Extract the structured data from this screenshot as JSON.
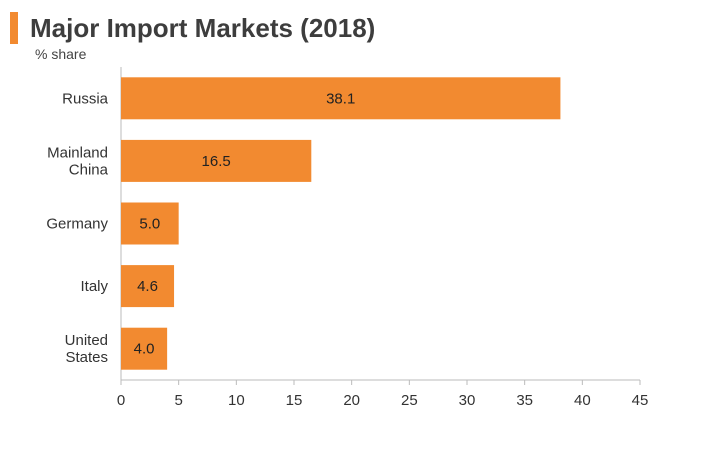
{
  "header": {
    "title": "Major Import Markets (2018)",
    "subtitle": "% share"
  },
  "colors": {
    "accent": "#f28a30",
    "bar": "#f28a30",
    "axis": "#bbbbbb"
  },
  "chart_data": {
    "type": "bar",
    "orientation": "horizontal",
    "title": "Major Import Markets (2018)",
    "subtitle": "% share",
    "categories": [
      [
        "Russia"
      ],
      [
        "Mainland",
        "China"
      ],
      [
        "Germany"
      ],
      [
        "Italy"
      ],
      [
        "United",
        "States"
      ]
    ],
    "values": [
      38.1,
      16.5,
      5.0,
      4.6,
      4.0
    ],
    "value_labels": [
      "38.1",
      "16.5",
      "5.0",
      "4.6",
      "4.0"
    ],
    "xlim": [
      0,
      45
    ],
    "xticks": [
      0,
      5,
      10,
      15,
      20,
      25,
      30,
      35,
      40,
      45
    ],
    "grid": false,
    "xlabel": "",
    "ylabel": ""
  }
}
